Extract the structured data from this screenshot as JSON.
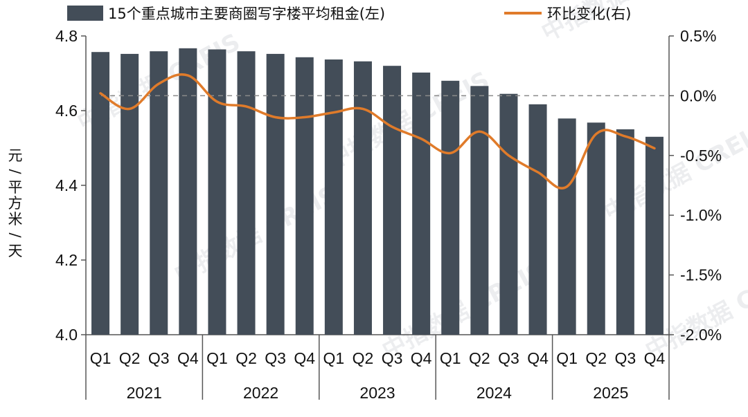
{
  "chart_data": {
    "type": "bar+line",
    "legend": {
      "bar": "15个重点城市主要商圈写字楼平均租金(左)",
      "line": "环比变化(右)",
      "placement": "top"
    },
    "ylabel_left": "元/平方米/天",
    "years": [
      "2021",
      "2022",
      "2023",
      "2024",
      "2025"
    ],
    "quarters": [
      "Q1",
      "Q2",
      "Q3",
      "Q4"
    ],
    "left_axis": {
      "ylim": [
        4.0,
        4.8
      ],
      "ticks": [
        "4.0",
        "4.2",
        "4.4",
        "4.6",
        "4.8"
      ]
    },
    "right_axis": {
      "ylim": [
        -2.0,
        0.5
      ],
      "ticks": [
        "-2.0%",
        "-1.5%",
        "-1.0%",
        "-0.5%",
        "0.0%",
        "0.5%"
      ]
    },
    "series": [
      {
        "name": "15个重点城市主要商圈写字楼平均租金(左)",
        "type": "bar",
        "axis": "left",
        "color": "#434d58",
        "values": [
          4.757,
          4.752,
          4.759,
          4.767,
          4.764,
          4.759,
          4.752,
          4.743,
          4.737,
          4.732,
          4.72,
          4.702,
          4.68,
          4.666,
          4.645,
          4.617,
          4.579,
          4.568,
          4.55,
          4.53
        ]
      },
      {
        "name": "环比变化(右)",
        "type": "line",
        "axis": "right",
        "color": "#e07b2a",
        "values": [
          0.02,
          -0.11,
          0.1,
          0.17,
          -0.05,
          -0.09,
          -0.18,
          -0.18,
          -0.14,
          -0.11,
          -0.26,
          -0.36,
          -0.48,
          -0.3,
          -0.5,
          -0.64,
          -0.76,
          -0.32,
          -0.34,
          -0.44
        ]
      }
    ],
    "zero_reference": "dashed",
    "watermark": "中指数据 CREIS"
  }
}
